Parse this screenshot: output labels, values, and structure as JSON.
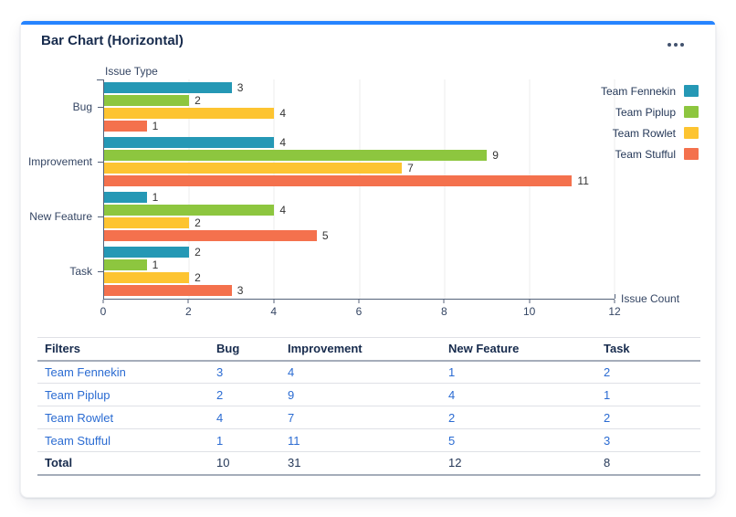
{
  "card": {
    "title": "Bar Chart (Horizontal)",
    "accent_color": "#2684FF",
    "menu_icon": "meatball-menu-icon"
  },
  "chart_data": {
    "type": "bar",
    "orientation": "horizontal",
    "ylabel": "Issue Type",
    "xlabel": "Issue Count",
    "categories": [
      "Bug",
      "Improvement",
      "New Feature",
      "Task"
    ],
    "series": [
      {
        "name": "Team Fennekin",
        "color": "#2598b5",
        "values": [
          3,
          4,
          1,
          2
        ]
      },
      {
        "name": "Team Piplup",
        "color": "#8dc63f",
        "values": [
          2,
          9,
          4,
          1
        ]
      },
      {
        "name": "Team Rowlet",
        "color": "#fdc431",
        "values": [
          4,
          7,
          2,
          2
        ]
      },
      {
        "name": "Team Stufful",
        "color": "#f4714d",
        "values": [
          1,
          11,
          5,
          3
        ]
      }
    ],
    "xlim": [
      0,
      12
    ],
    "xticks": [
      0,
      2,
      4,
      6,
      8,
      10,
      12
    ],
    "grid": true,
    "legend_position": "top-right",
    "bar_value_labels": true
  },
  "table": {
    "headers": [
      "Filters",
      "Bug",
      "Improvement",
      "New Feature",
      "Task"
    ],
    "rows": [
      {
        "label": "Team Fennekin",
        "values": [
          3,
          4,
          1,
          2
        ],
        "link": true
      },
      {
        "label": "Team Piplup",
        "values": [
          2,
          9,
          4,
          1
        ],
        "link": true
      },
      {
        "label": "Team Rowlet",
        "values": [
          4,
          7,
          2,
          2
        ],
        "link": true
      },
      {
        "label": "Team Stufful",
        "values": [
          1,
          11,
          5,
          3
        ],
        "link": true
      },
      {
        "label": "Total",
        "values": [
          10,
          31,
          12,
          8
        ],
        "link": false
      }
    ],
    "link_color": "#2a6bd2"
  }
}
